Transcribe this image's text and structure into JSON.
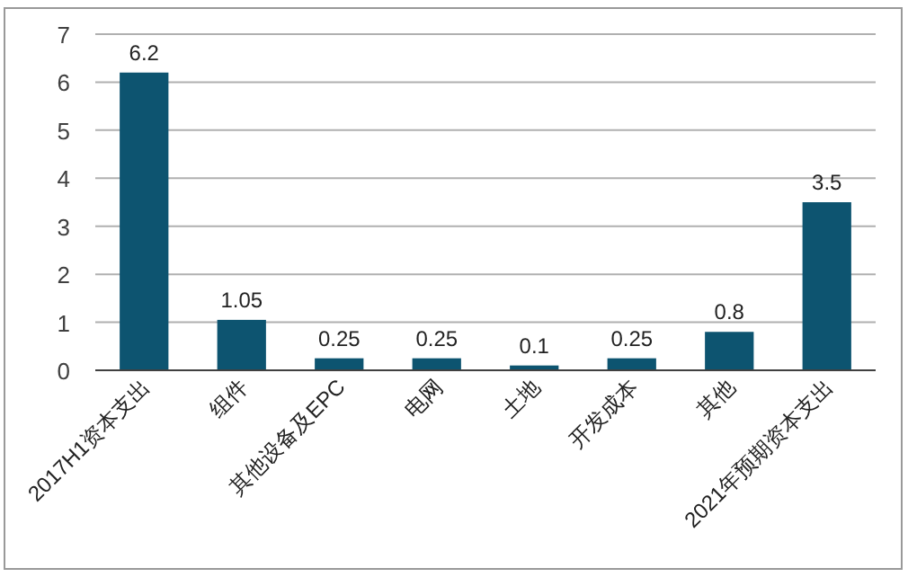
{
  "chart_data": {
    "type": "bar",
    "categories": [
      "2017H1资本支出",
      "组件",
      "其他设备及EPC",
      "电网",
      "土地",
      "开发成本",
      "其他",
      "2021年预期资本支出"
    ],
    "values": [
      6.2,
      1.05,
      0.25,
      0.25,
      0.1,
      0.25,
      0.8,
      3.5
    ],
    "color": "#0d5470",
    "ylim": [
      0,
      7
    ],
    "yticks": [
      0,
      1,
      2,
      3,
      4,
      5,
      6,
      7
    ],
    "grid": "y",
    "data_labels": true
  }
}
